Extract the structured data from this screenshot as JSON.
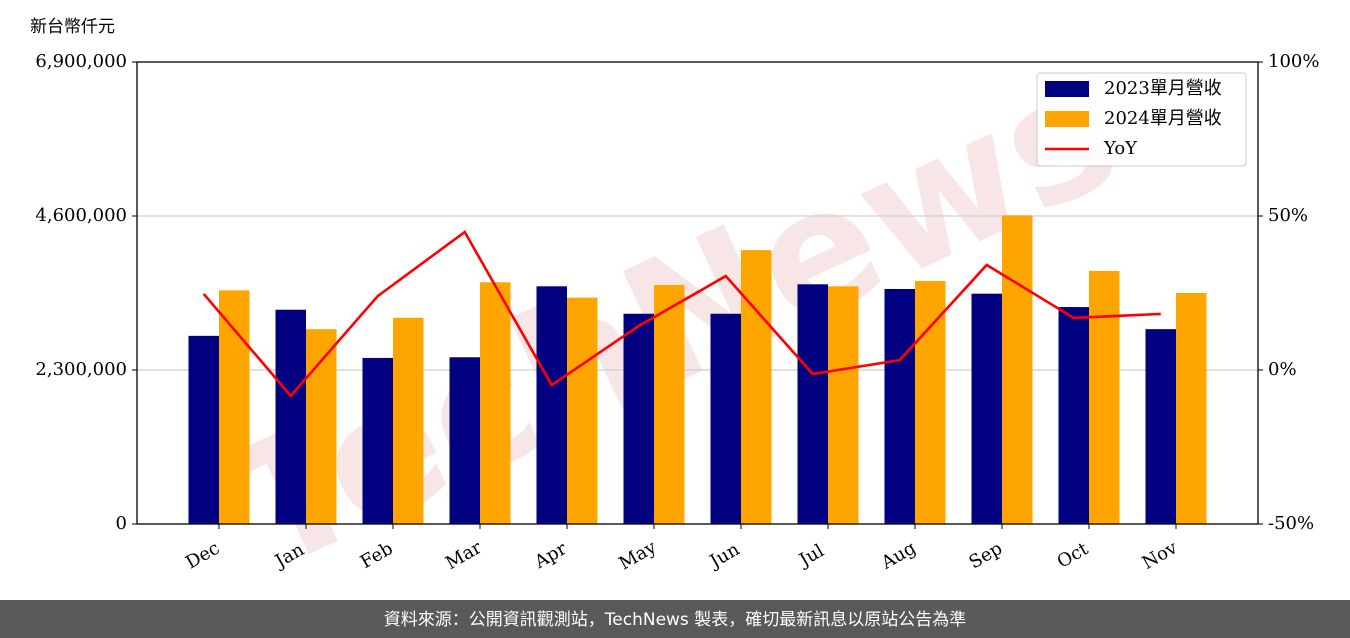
{
  "chart_data": {
    "type": "bar_line",
    "y_label": "新台幣仟元",
    "categories": [
      "Dec",
      "Jan",
      "Feb",
      "Mar",
      "Apr",
      "May",
      "Jun",
      "Jul",
      "Aug",
      "Sep",
      "Oct",
      "Nov"
    ],
    "series": [
      {
        "name": "2023單月營收",
        "color": "#000080",
        "type": "bar",
        "values": [
          2810000,
          3200000,
          2480000,
          2490000,
          3550000,
          3140000,
          3140000,
          3580000,
          3510000,
          3440000,
          3240000,
          2910000
        ]
      },
      {
        "name": "2024單月營收",
        "color": "#FFA500",
        "type": "bar",
        "values": [
          3490000,
          2910000,
          3080000,
          3610000,
          3380000,
          3570000,
          4090000,
          3550000,
          3630000,
          4610000,
          3780000,
          3450000
        ]
      },
      {
        "name": "YoY",
        "color": "#FF0000",
        "type": "line",
        "axis": "y2",
        "values": [
          24.7,
          -8.4,
          24.0,
          44.8,
          -4.9,
          14.3,
          30.5,
          -1.3,
          3.2,
          34.1,
          16.9,
          18.2
        ]
      }
    ],
    "ylim": [
      0,
      6900000
    ],
    "yticks": [
      0,
      {
        "value": 2300000,
        "label": "2,300,000"
      },
      {
        "value": 4600000,
        "label": "4,600,000"
      },
      {
        "value": 6900000,
        "label": "6,900,000"
      }
    ],
    "y2lim": [
      -50,
      100
    ],
    "y2ticks": [
      {
        "value": -50,
        "label": "-50%"
      },
      {
        "value": 0,
        "label": "0%"
      },
      {
        "value": 50,
        "label": "50%"
      },
      {
        "value": 100,
        "label": "100%"
      }
    ],
    "grid": true,
    "legend": "upper right",
    "watermark": "TechNews",
    "footer": "資料來源：公開資訊觀測站，TechNews 製表，確切最新訊息以原站公告為準"
  }
}
